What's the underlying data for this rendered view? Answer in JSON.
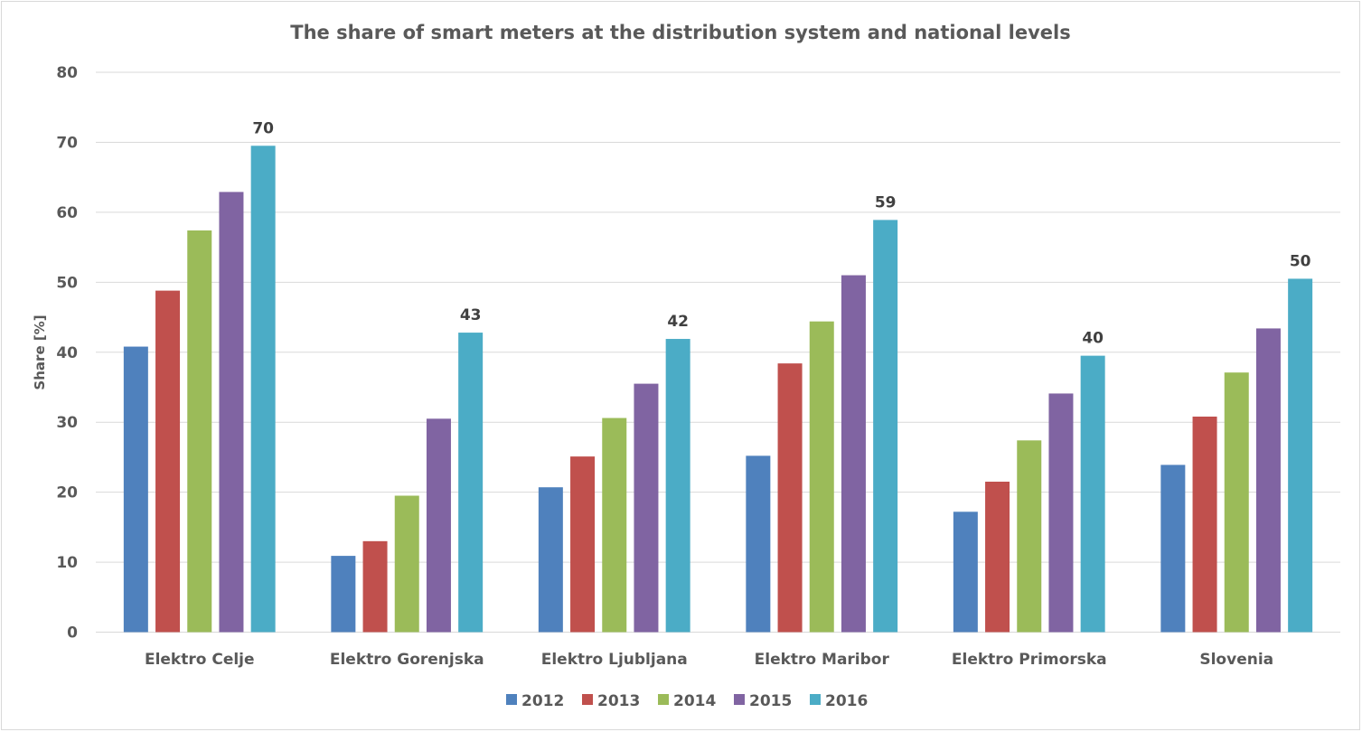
{
  "chart_data": {
    "type": "bar",
    "title": "The share of smart meters at the distribution system and national levels",
    "xlabel": "",
    "ylabel": "Share [%]",
    "ylim": [
      0,
      80
    ],
    "yticks": [
      0,
      10,
      20,
      30,
      40,
      50,
      60,
      70,
      80
    ],
    "grid": true,
    "legend_position": "bottom",
    "categories": [
      "Elektro Celje",
      "Elektro Gorenjska",
      "Elektro Ljubljana",
      "Elektro Maribor",
      "Elektro Primorska",
      "Slovenia"
    ],
    "series": [
      {
        "name": "2012",
        "color": "#4f81bd",
        "values": [
          40.8,
          10.9,
          20.7,
          25.2,
          17.2,
          23.9
        ]
      },
      {
        "name": "2013",
        "color": "#c0504d",
        "values": [
          48.8,
          13.0,
          25.1,
          38.4,
          21.5,
          30.8
        ]
      },
      {
        "name": "2014",
        "color": "#9bbb59",
        "values": [
          57.4,
          19.5,
          30.6,
          44.4,
          27.4,
          37.1
        ]
      },
      {
        "name": "2015",
        "color": "#8064a2",
        "values": [
          62.9,
          30.5,
          35.5,
          51.0,
          34.1,
          43.4
        ]
      },
      {
        "name": "2016",
        "color": "#4bacc6",
        "values": [
          69.5,
          42.8,
          41.9,
          58.9,
          39.5,
          50.5
        ]
      }
    ],
    "data_labels": {
      "series": "2016",
      "labels": [
        "70",
        "43",
        "42",
        "59",
        "40",
        "50"
      ]
    }
  }
}
